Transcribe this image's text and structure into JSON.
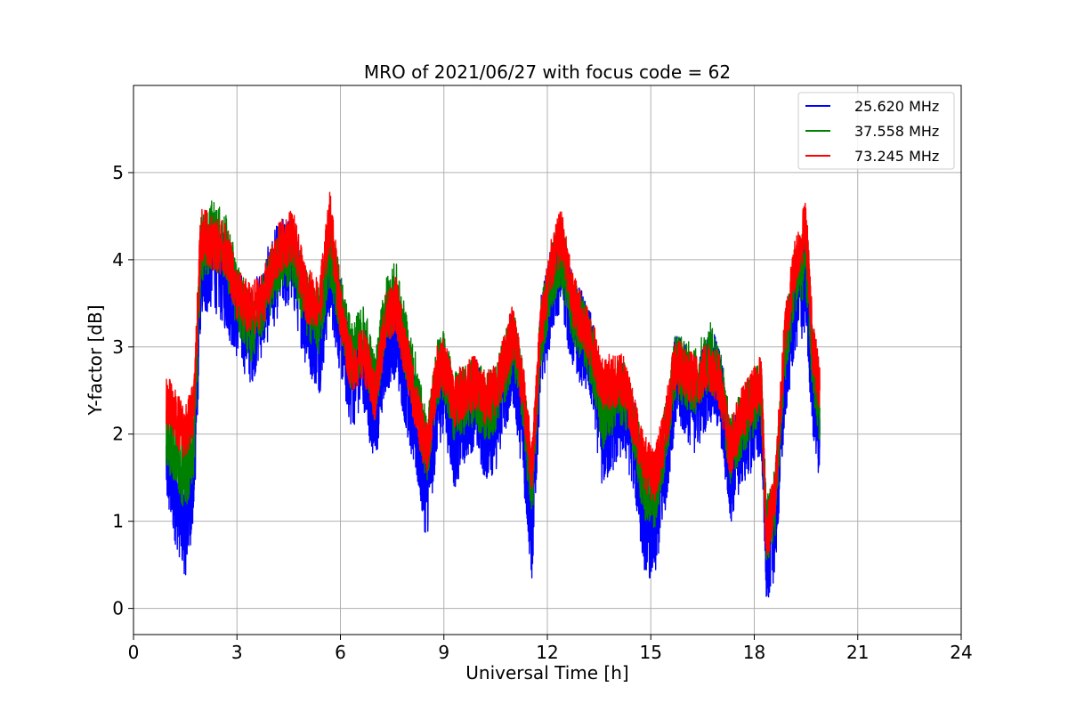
{
  "chart_data": {
    "type": "line",
    "title": "MRO of 2021/06/27 with focus code = 62",
    "xlabel": "Universal Time [h]",
    "ylabel": "Y-factor [dB]",
    "xlim": [
      0,
      24
    ],
    "ylim": [
      -0.3,
      6.0
    ],
    "x_ticks": [
      0,
      3,
      6,
      9,
      12,
      15,
      18,
      21,
      24
    ],
    "x_tick_labels": [
      "0",
      "3",
      "6",
      "9",
      "12",
      "15",
      "18",
      "21",
      "24"
    ],
    "y_ticks": [
      0,
      1,
      2,
      3,
      4,
      5
    ],
    "y_tick_labels": [
      "0",
      "1",
      "2",
      "3",
      "4",
      "5"
    ],
    "grid": true,
    "legend_position": "top-right",
    "noise_amplitude_note": "",
    "series": [
      {
        "name": "25.620 MHz",
        "color": "#0000ff",
        "noise": 0.55,
        "x": [
          0.95,
          1.2,
          1.5,
          1.75,
          1.95,
          2.3,
          2.7,
          3.0,
          3.4,
          3.8,
          4.2,
          4.6,
          5.0,
          5.4,
          5.7,
          6.0,
          6.3,
          6.7,
          7.0,
          7.3,
          7.6,
          7.9,
          8.2,
          8.5,
          8.8,
          9.0,
          9.3,
          9.6,
          9.9,
          10.2,
          10.5,
          10.8,
          11.0,
          11.3,
          11.55,
          11.8,
          12.1,
          12.4,
          12.7,
          13.0,
          13.3,
          13.6,
          13.9,
          14.2,
          14.5,
          14.8,
          15.1,
          15.4,
          15.7,
          16.0,
          16.3,
          16.7,
          17.0,
          17.3,
          17.6,
          17.9,
          18.2,
          18.35,
          18.6,
          18.9,
          19.2,
          19.5,
          19.7,
          19.9
        ],
        "y": [
          1.7,
          1.3,
          0.9,
          1.5,
          3.8,
          4.0,
          3.7,
          3.4,
          3.1,
          3.5,
          3.9,
          4.0,
          3.3,
          3.0,
          3.9,
          3.2,
          2.6,
          2.8,
          2.1,
          3.0,
          3.2,
          2.6,
          2.0,
          1.3,
          2.3,
          2.6,
          1.9,
          2.2,
          2.4,
          2.0,
          2.1,
          2.6,
          2.9,
          2.0,
          0.8,
          3.0,
          3.6,
          4.0,
          3.3,
          3.1,
          2.8,
          1.9,
          2.1,
          2.3,
          1.9,
          1.0,
          0.8,
          1.6,
          2.6,
          2.5,
          2.3,
          2.7,
          2.5,
          1.5,
          1.9,
          2.1,
          2.3,
          0.6,
          0.9,
          2.7,
          3.5,
          3.7,
          2.5,
          2.0
        ]
      },
      {
        "name": "37.558 MHz",
        "color": "#008000",
        "noise": 0.4,
        "x": [
          0.95,
          1.2,
          1.5,
          1.75,
          1.95,
          2.3,
          2.7,
          3.0,
          3.4,
          3.8,
          4.2,
          4.6,
          5.0,
          5.4,
          5.7,
          6.0,
          6.3,
          6.7,
          7.0,
          7.3,
          7.6,
          7.9,
          8.2,
          8.5,
          8.8,
          9.0,
          9.3,
          9.6,
          9.9,
          10.2,
          10.5,
          10.8,
          11.0,
          11.3,
          11.55,
          11.8,
          12.1,
          12.4,
          12.7,
          13.0,
          13.3,
          13.6,
          13.9,
          14.2,
          14.5,
          14.8,
          15.1,
          15.4,
          15.7,
          16.0,
          16.3,
          16.7,
          17.0,
          17.3,
          17.6,
          17.9,
          18.2,
          18.35,
          18.6,
          18.9,
          19.2,
          19.5,
          19.7,
          19.9
        ],
        "y": [
          2.0,
          1.8,
          1.5,
          1.9,
          4.1,
          4.3,
          4.1,
          3.6,
          3.2,
          3.6,
          4.0,
          4.1,
          3.5,
          3.3,
          4.1,
          3.5,
          2.9,
          3.1,
          2.5,
          3.4,
          3.6,
          3.0,
          2.5,
          1.8,
          2.7,
          2.8,
          2.3,
          2.4,
          2.5,
          2.3,
          2.4,
          2.8,
          3.1,
          2.4,
          1.3,
          3.1,
          3.8,
          4.1,
          3.5,
          3.2,
          2.9,
          2.2,
          2.4,
          2.5,
          2.1,
          1.4,
          1.3,
          1.9,
          2.8,
          2.7,
          2.6,
          2.9,
          2.7,
          1.8,
          2.1,
          2.3,
          2.5,
          0.9,
          1.2,
          3.0,
          3.8,
          4.0,
          2.8,
          2.3
        ]
      },
      {
        "name": "73.245 MHz",
        "color": "#ff0000",
        "noise": 0.32,
        "x": [
          0.95,
          1.2,
          1.5,
          1.75,
          1.95,
          2.3,
          2.7,
          3.0,
          3.4,
          3.8,
          4.2,
          4.6,
          5.0,
          5.4,
          5.7,
          6.0,
          6.3,
          6.7,
          7.0,
          7.3,
          7.6,
          7.9,
          8.2,
          8.5,
          8.8,
          9.0,
          9.3,
          9.6,
          9.9,
          10.2,
          10.5,
          10.8,
          11.0,
          11.3,
          11.55,
          11.8,
          12.1,
          12.4,
          12.7,
          13.0,
          13.3,
          13.6,
          13.9,
          14.2,
          14.5,
          14.8,
          15.1,
          15.4,
          15.7,
          16.0,
          16.3,
          16.7,
          17.0,
          17.3,
          17.6,
          17.9,
          18.2,
          18.35,
          18.6,
          18.9,
          19.2,
          19.5,
          19.7,
          19.9
        ],
        "y": [
          2.4,
          2.2,
          2.0,
          2.3,
          4.3,
          4.2,
          4.1,
          3.6,
          3.4,
          3.6,
          4.1,
          4.3,
          3.6,
          3.5,
          4.5,
          3.4,
          2.8,
          2.9,
          2.4,
          3.3,
          3.5,
          2.9,
          2.3,
          1.8,
          2.7,
          2.8,
          2.4,
          2.5,
          2.6,
          2.4,
          2.5,
          2.9,
          3.2,
          2.5,
          1.6,
          3.2,
          3.9,
          4.3,
          3.6,
          3.3,
          3.0,
          2.6,
          2.6,
          2.6,
          2.2,
          1.7,
          1.5,
          2.0,
          2.8,
          2.7,
          2.6,
          2.8,
          2.6,
          1.8,
          2.2,
          2.4,
          2.6,
          0.8,
          1.3,
          3.2,
          4.0,
          4.4,
          3.0,
          2.5
        ]
      }
    ]
  }
}
